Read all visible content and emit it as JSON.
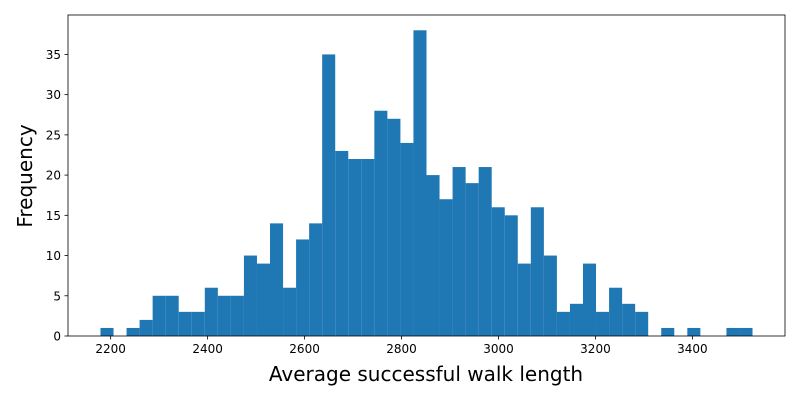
{
  "chart_data": {
    "type": "histogram",
    "xlabel": "Average successful walk length",
    "ylabel": "Frequency",
    "color": "#1f77b4",
    "bins": [
      2179.0,
      2205.9,
      2232.8,
      2259.7,
      2286.6,
      2313.5,
      2340.4,
      2367.3,
      2394.2,
      2421.1,
      2448.0,
      2474.9,
      2501.8,
      2528.7,
      2555.6,
      2582.5,
      2609.4,
      2636.3,
      2663.2,
      2690.1,
      2717.0,
      2743.9,
      2770.8,
      2797.7,
      2824.6,
      2851.5,
      2878.4,
      2905.3,
      2932.2,
      2959.1,
      2986.0,
      3012.9,
      3039.8,
      3066.7,
      3093.6,
      3120.5,
      3147.4,
      3174.3,
      3201.2,
      3228.1,
      3255.0,
      3281.9,
      3308.8,
      3335.7,
      3362.6,
      3389.5,
      3416.4,
      3443.3,
      3470.2,
      3497.1,
      3524.0
    ],
    "values": [
      1,
      0,
      1,
      2,
      5,
      5,
      3,
      3,
      6,
      5,
      5,
      10,
      9,
      14,
      6,
      12,
      14,
      35,
      23,
      22,
      22,
      28,
      27,
      24,
      38,
      20,
      17,
      21,
      19,
      21,
      16,
      15,
      9,
      16,
      10,
      3,
      4,
      9,
      3,
      6,
      4,
      3,
      0,
      1,
      0,
      1,
      0,
      0,
      1,
      1
    ],
    "xlim": [
      2112,
      3591
    ],
    "ylim": [
      0,
      39.9
    ],
    "xticks": [
      2200,
      2400,
      2600,
      2800,
      3000,
      3200,
      3400
    ],
    "yticks": [
      0,
      5,
      10,
      15,
      20,
      25,
      30,
      35
    ]
  }
}
